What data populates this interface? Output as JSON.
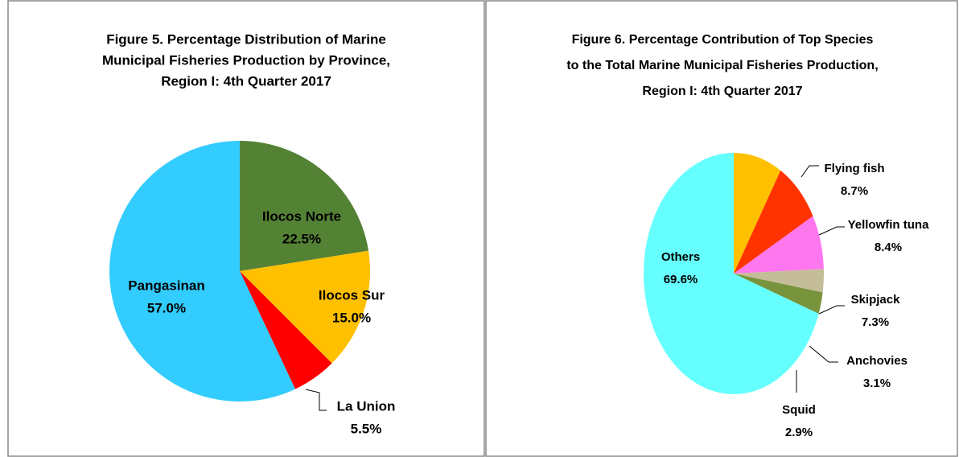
{
  "chart_data": [
    {
      "type": "pie",
      "title": [
        "Figure 5. Percentage Distribution of Marine",
        "Municipal Fisheries Production by Province,",
        "Region I: 4th Quarter 2017"
      ],
      "categories": [
        "Ilocos Norte",
        "Ilocos Sur",
        "La Union",
        "Pangasinan"
      ],
      "values": [
        22.5,
        15.0,
        5.5,
        57.0
      ],
      "value_labels": [
        "22.5%",
        "15.0%",
        "5.5%",
        "57.0%"
      ],
      "colors": [
        "#548235",
        "#ffc000",
        "#ff0000",
        "#33ccff"
      ]
    },
    {
      "type": "pie",
      "title": [
        "Figure 6. Percentage Contribution  of Top Species",
        "to the Total Marine Municipal Fisheries Production,",
        "Region I: 4th Quarter 2017"
      ],
      "categories": [
        "Flying fish",
        "Yellowfin tuna",
        "Skipjack",
        "Anchovies",
        "Squid",
        "Others"
      ],
      "values": [
        8.7,
        8.4,
        7.3,
        3.1,
        2.9,
        69.6
      ],
      "value_labels": [
        "8.7%",
        "8.4%",
        "7.3%",
        "3.1%",
        "2.9%",
        "69.6%"
      ],
      "colors": [
        "#ffc000",
        "#ff3300",
        "#ff77ee",
        "#c4bd97",
        "#77933c",
        "#66ffff"
      ]
    }
  ]
}
